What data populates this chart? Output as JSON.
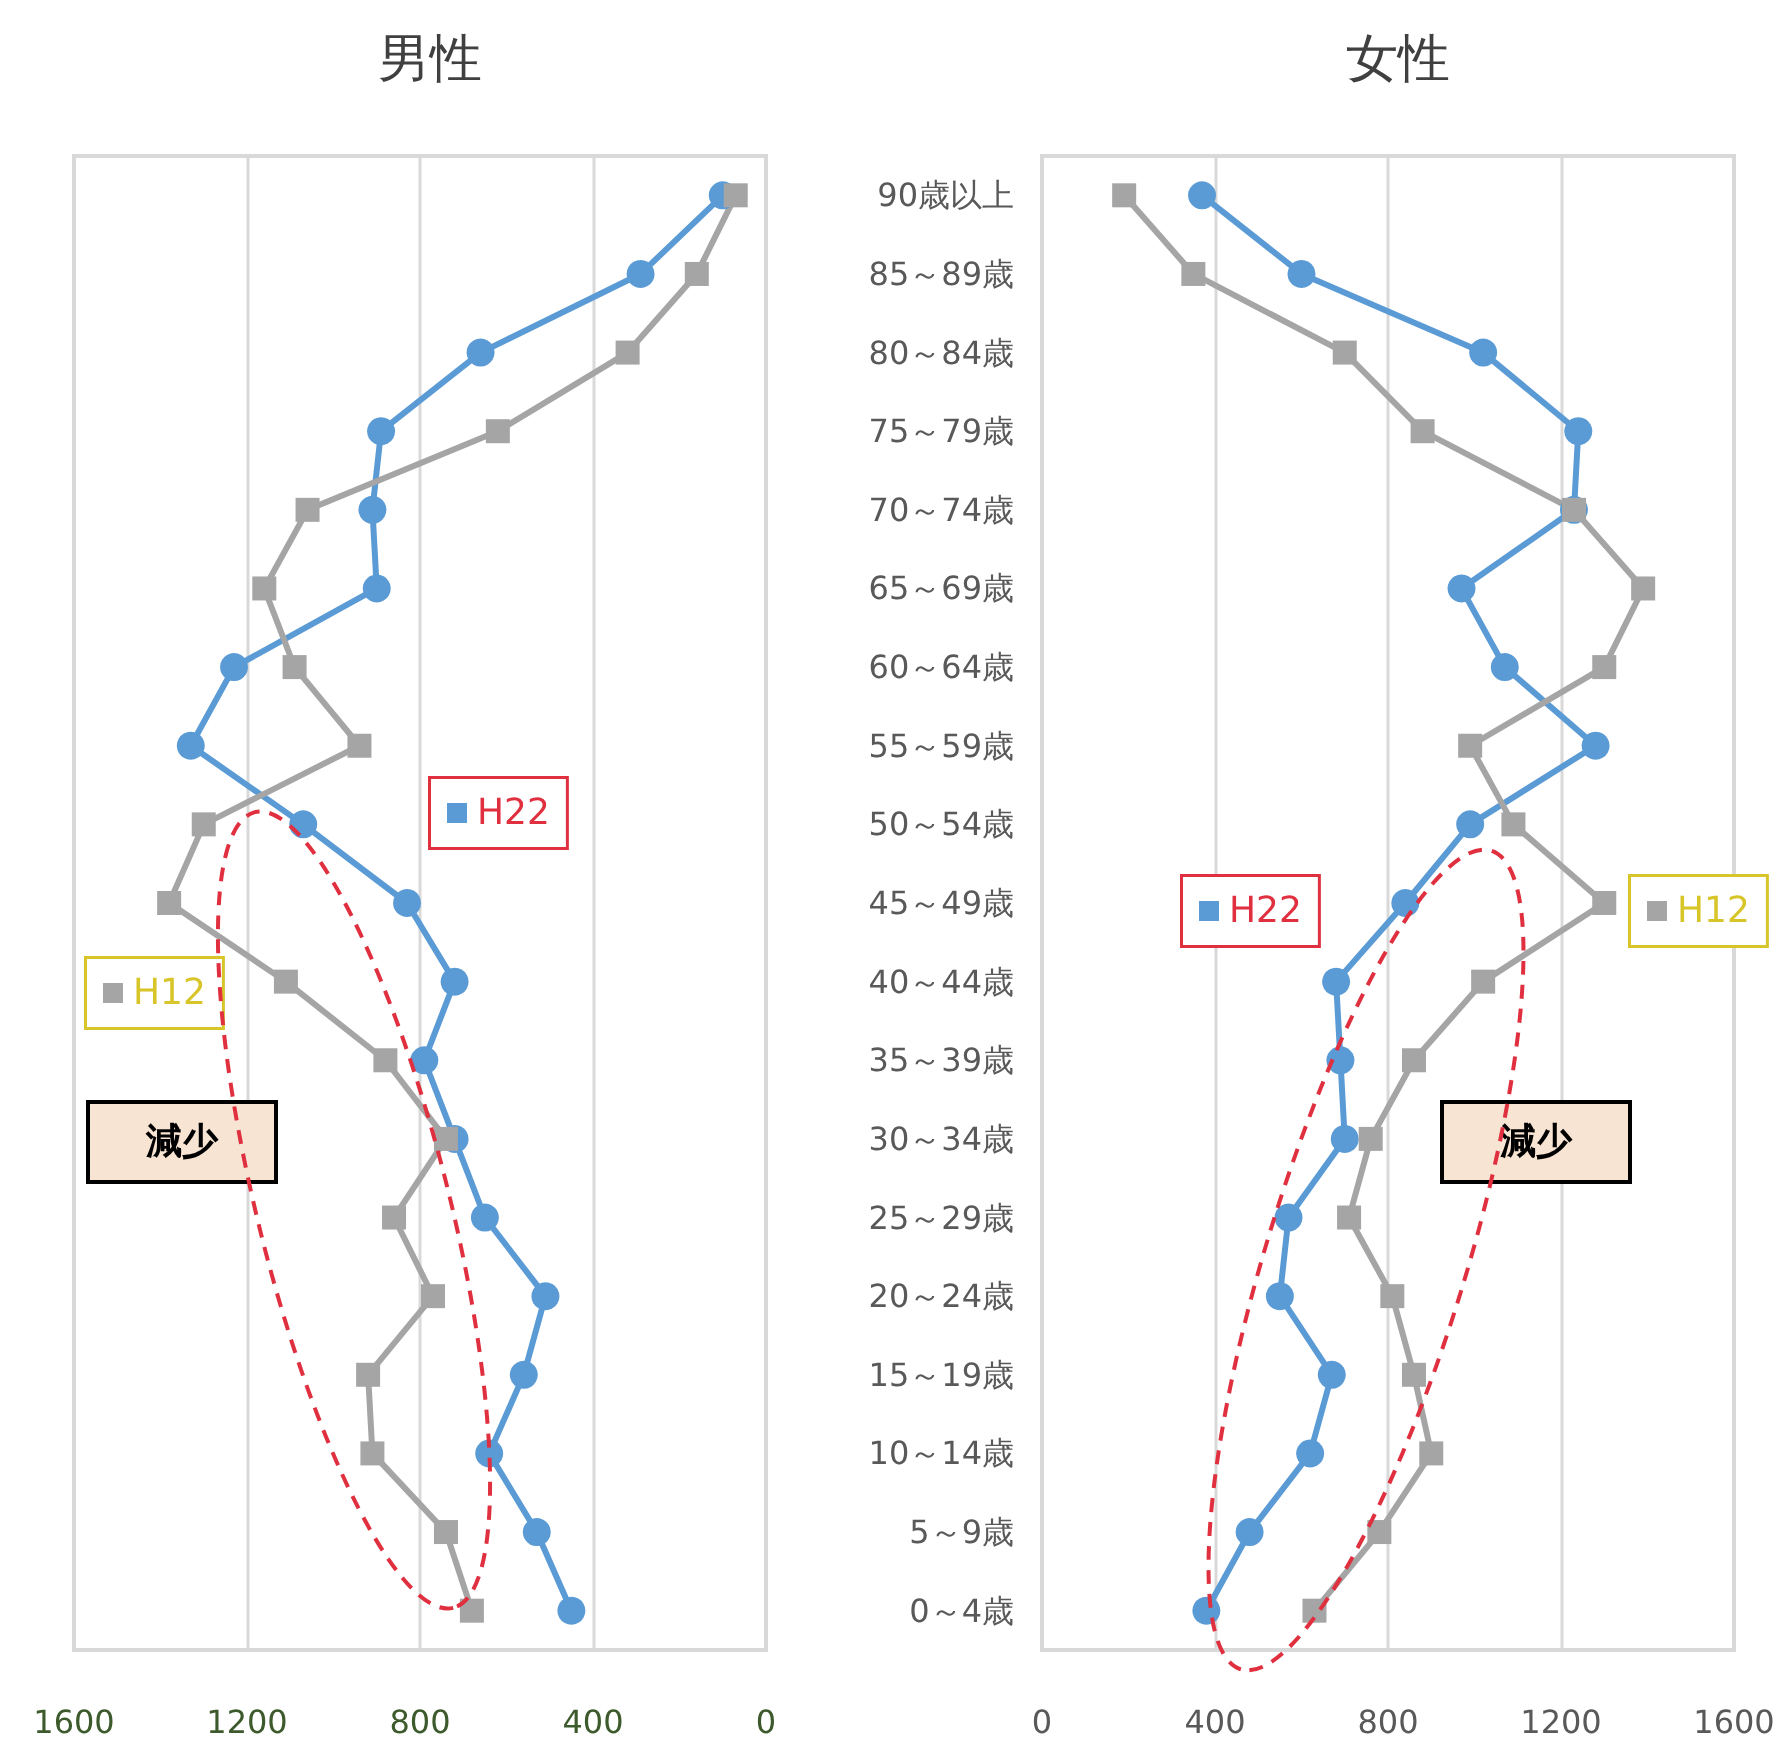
{
  "chart_data": [
    {
      "type": "line",
      "title": "男性",
      "orientation": "horizontal",
      "grid": "x",
      "legend": "left",
      "categories": [
        null,
        null,
        null,
        null,
        null,
        null,
        null,
        null,
        null,
        null,
        null,
        null,
        null,
        null,
        null,
        null,
        null,
        null,
        null
      ],
      "xlim": [
        1600,
        0
      ],
      "xticks": [
        1600,
        1200,
        800,
        400,
        0
      ],
      "series": [
        {
          "name": "H22",
          "color": "#5b9bd5",
          "marker": "circle",
          "values": [
            100,
            290,
            660,
            890,
            910,
            900,
            1230,
            1330,
            1070,
            830,
            720,
            790,
            720,
            650,
            510,
            560,
            640,
            530,
            450
          ]
        },
        {
          "name": "H12",
          "color": "#a5a5a5",
          "marker": "square",
          "values": [
            70,
            160,
            320,
            620,
            1060,
            1160,
            1090,
            940,
            1300,
            1380,
            1110,
            880,
            740,
            860,
            770,
            920,
            910,
            740,
            680
          ]
        }
      ],
      "annotations": [
        "減少"
      ]
    },
    {
      "type": "line",
      "title": "女性",
      "orientation": "horizontal",
      "grid": "x",
      "legend": "center",
      "categories": [
        "90歳以上",
        "85～89歳",
        "80～84歳",
        "75～79歳",
        "70～74歳",
        "65～69歳",
        "60～64歳",
        "55～59歳",
        "50～54歳",
        "45～49歳",
        "40～44歳",
        "35～39歳",
        "30～34歳",
        "25～29歳",
        "20～24歳",
        "15～19歳",
        "10～14歳",
        "5～9歳",
        "0～4歳"
      ],
      "xlim": [
        0,
        1600
      ],
      "xticks": [
        0,
        400,
        800,
        1200,
        1600
      ],
      "series": [
        {
          "name": "H22",
          "color": "#5b9bd5",
          "marker": "circle",
          "values": [
            370,
            600,
            1020,
            1240,
            1230,
            970,
            1070,
            1280,
            990,
            840,
            680,
            690,
            700,
            570,
            550,
            670,
            620,
            480,
            380
          ]
        },
        {
          "name": "H12",
          "color": "#a5a5a5",
          "marker": "square",
          "values": [
            190,
            350,
            700,
            880,
            1230,
            1390,
            1300,
            990,
            1090,
            1300,
            1020,
            860,
            760,
            710,
            810,
            860,
            900,
            780,
            630
          ]
        }
      ],
      "annotations": [
        "減少"
      ]
    }
  ]
}
